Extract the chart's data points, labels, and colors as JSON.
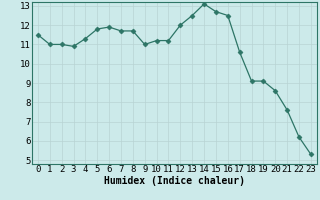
{
  "x": [
    0,
    1,
    2,
    3,
    4,
    5,
    6,
    7,
    8,
    9,
    10,
    11,
    12,
    13,
    14,
    15,
    16,
    17,
    18,
    19,
    20,
    21,
    22,
    23
  ],
  "y": [
    11.5,
    11.0,
    11.0,
    10.9,
    11.3,
    11.8,
    11.9,
    11.7,
    11.7,
    11.0,
    11.2,
    11.2,
    12.0,
    12.5,
    13.1,
    12.7,
    12.5,
    10.6,
    9.1,
    9.1,
    8.6,
    7.6,
    6.2,
    5.3
  ],
  "line_color": "#2d7566",
  "marker": "D",
  "marker_size": 2.5,
  "bg_color": "#cceaea",
  "grid_color": "#b8d4d4",
  "xlabel": "Humidex (Indice chaleur)",
  "xlim": [
    -0.5,
    23.5
  ],
  "ylim": [
    4.8,
    13.2
  ],
  "yticks": [
    5,
    6,
    7,
    8,
    9,
    10,
    11,
    12,
    13
  ],
  "xticks": [
    0,
    1,
    2,
    3,
    4,
    5,
    6,
    7,
    8,
    9,
    10,
    11,
    12,
    13,
    14,
    15,
    16,
    17,
    18,
    19,
    20,
    21,
    22,
    23
  ],
  "axis_fontsize": 7,
  "tick_fontsize": 6.5
}
